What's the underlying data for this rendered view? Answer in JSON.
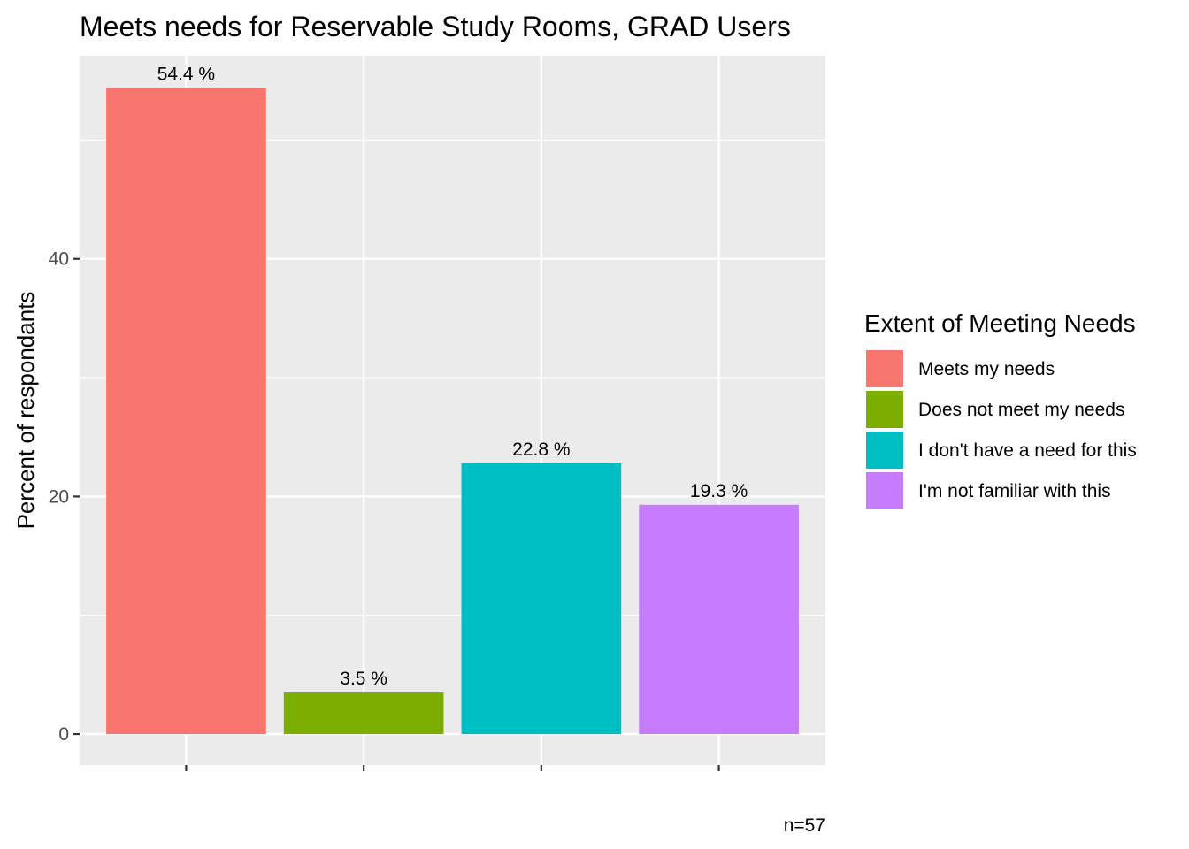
{
  "chart_data": {
    "type": "bar",
    "title": "Meets needs for Reservable Study Rooms, GRAD Users",
    "xlabel": "",
    "ylabel": "Percent of respondants",
    "ylim": [
      -2.6,
      57.1
    ],
    "yticks": [
      0,
      20,
      40
    ],
    "grid": true,
    "legend_position": "right",
    "categories": [
      "Meets my needs",
      "Does not meet my needs",
      "I don't have a need for this",
      "I'm not familiar with this"
    ],
    "values": [
      54.4,
      3.5,
      22.8,
      19.3
    ],
    "data_labels": [
      "54.4 %",
      "3.5 %",
      "22.8 %",
      "19.3 %"
    ],
    "colors": [
      "#F8766D",
      "#7CAE00",
      "#00BFC4",
      "#C77CFF"
    ],
    "legend_title": "Extent of Meeting Needs",
    "caption": "n=57"
  }
}
